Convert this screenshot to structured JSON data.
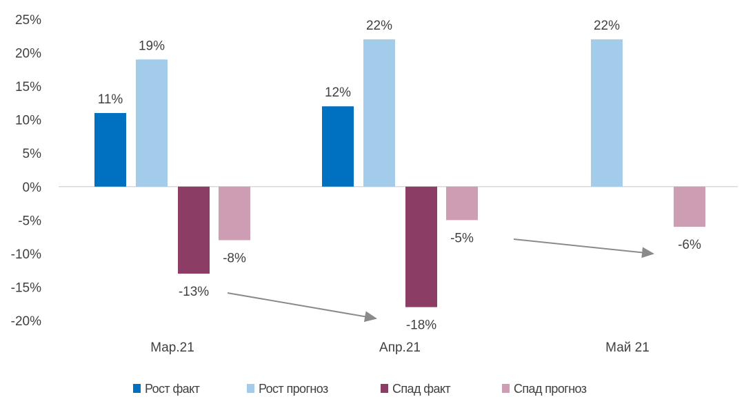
{
  "chart_data": {
    "type": "bar",
    "title": "",
    "xlabel": "",
    "ylabel": "",
    "ylim": [
      -20,
      25
    ],
    "y_ticks": [
      "25%",
      "20%",
      "15%",
      "10%",
      "5%",
      "0%",
      "-5%",
      "-10%",
      "-15%",
      "-20%"
    ],
    "y_tick_values": [
      25,
      20,
      15,
      10,
      5,
      0,
      -5,
      -10,
      -15,
      -20
    ],
    "categories": [
      "Мар.21",
      "Апр.21",
      "Май 21"
    ],
    "series": [
      {
        "name": "Рост факт",
        "color": "#0070C0",
        "values": [
          11,
          12,
          null
        ],
        "labels": [
          "11%",
          "12%",
          ""
        ]
      },
      {
        "name": "Рост прогноз",
        "color": "#A3CBEA",
        "values": [
          19,
          22,
          22
        ],
        "labels": [
          "19%",
          "22%",
          "22%"
        ]
      },
      {
        "name": "Спад факт",
        "color": "#8C3D66",
        "values": [
          -13,
          -18,
          null
        ],
        "labels": [
          "-13%",
          "-18%",
          ""
        ]
      },
      {
        "name": "Спад прогноз",
        "color": "#CD9DB3",
        "values": [
          -8,
          -5,
          -6
        ],
        "labels": [
          "-8%",
          "-5%",
          "-6%"
        ]
      }
    ],
    "legend_position": "bottom",
    "grid": false,
    "annotations": [
      "arrow from Мар.21 Спад факт to Апр.21 Спад факт",
      "arrow from Апр.21 Спад прогноз to Май 21 Спад прогноз"
    ]
  }
}
